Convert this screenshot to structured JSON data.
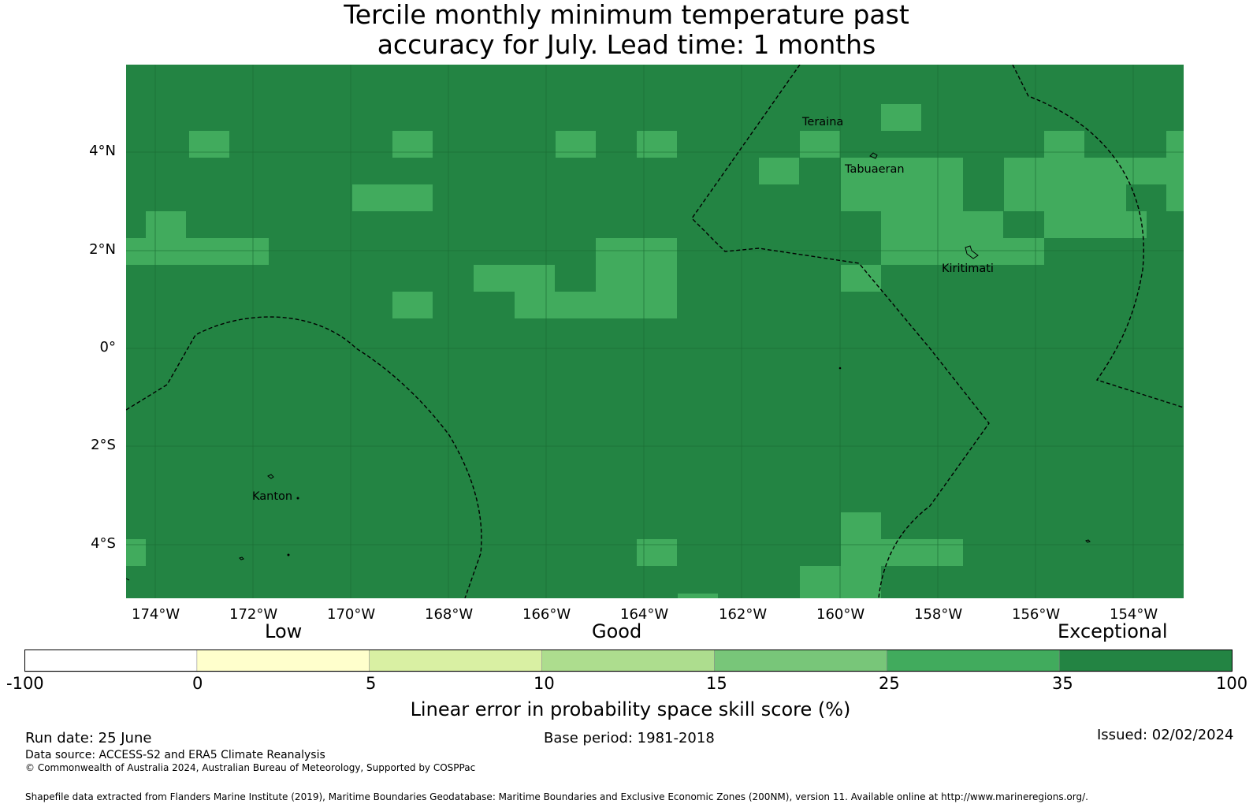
{
  "title_line1": "Tercile monthly minimum temperature past",
  "title_line2": "accuracy for July. Lead time: 1 months",
  "map": {
    "lon_ticks": [
      "174°W",
      "172°W",
      "170°W",
      "168°W",
      "166°W",
      "164°W",
      "162°W",
      "160°W",
      "158°W",
      "156°W",
      "154°W"
    ],
    "lat_ticks": [
      "4°N",
      "2°N",
      "0°",
      "2°S",
      "4°S"
    ],
    "base_color": "#238443",
    "highlight_color": "#41ab5d",
    "place_labels": [
      "Teraina",
      "Tabuaeran",
      "Kiritimati",
      "Kanton"
    ]
  },
  "colorbar": {
    "categories": [
      "Low",
      "Good",
      "Exceptional"
    ],
    "ticks": [
      "-100",
      "0",
      "5",
      "10",
      "15",
      "25",
      "35",
      "100"
    ],
    "colors": [
      "#ffffff",
      "#ffffcc",
      "#d9f0a3",
      "#addd8e",
      "#78c679",
      "#41ab5d",
      "#238443"
    ],
    "label": "Linear error in probability space skill score (%)"
  },
  "footer": {
    "run_date": "Run date: 25 June",
    "base_period": "Base period: 1981-2018",
    "issued": "Issued: 02/02/2024",
    "data_source": "Data source: ACCESS-S2 and ERA5 Climate Reanalysis",
    "copyright": "© Commonwealth of Australia 2024, Australian Bureau of Meteorology, Supported by COSPPac",
    "shapefile": "Shapefile data extracted from Flanders Marine Institute (2019), Maritime Boundaries Geodatabase: Maritime Boundaries and Exclusive Economic Zones (200NM), version 11. Available online at http://www.marineregions.org/."
  }
}
